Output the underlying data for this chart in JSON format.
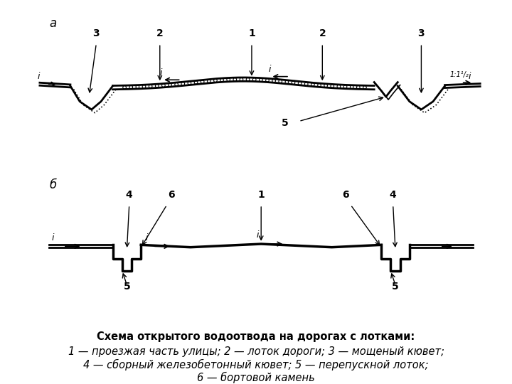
{
  "title_a": "а",
  "title_b": "б",
  "caption_line1": "Схема открытого водоотвода на дорогах с лотками:",
  "caption_line2": "1 — проезжая часть улицы; 2 — лоток дороги; 3 — мощеный кювет;",
  "caption_line3": "4 — сборный железобетонный кювет; 5 — перепускной лоток;",
  "caption_line4": "6 — бортовой камень",
  "bg_color": "#ffffff",
  "line_color": "#000000",
  "label_fontsize": 10,
  "caption_fontsize": 10.5
}
